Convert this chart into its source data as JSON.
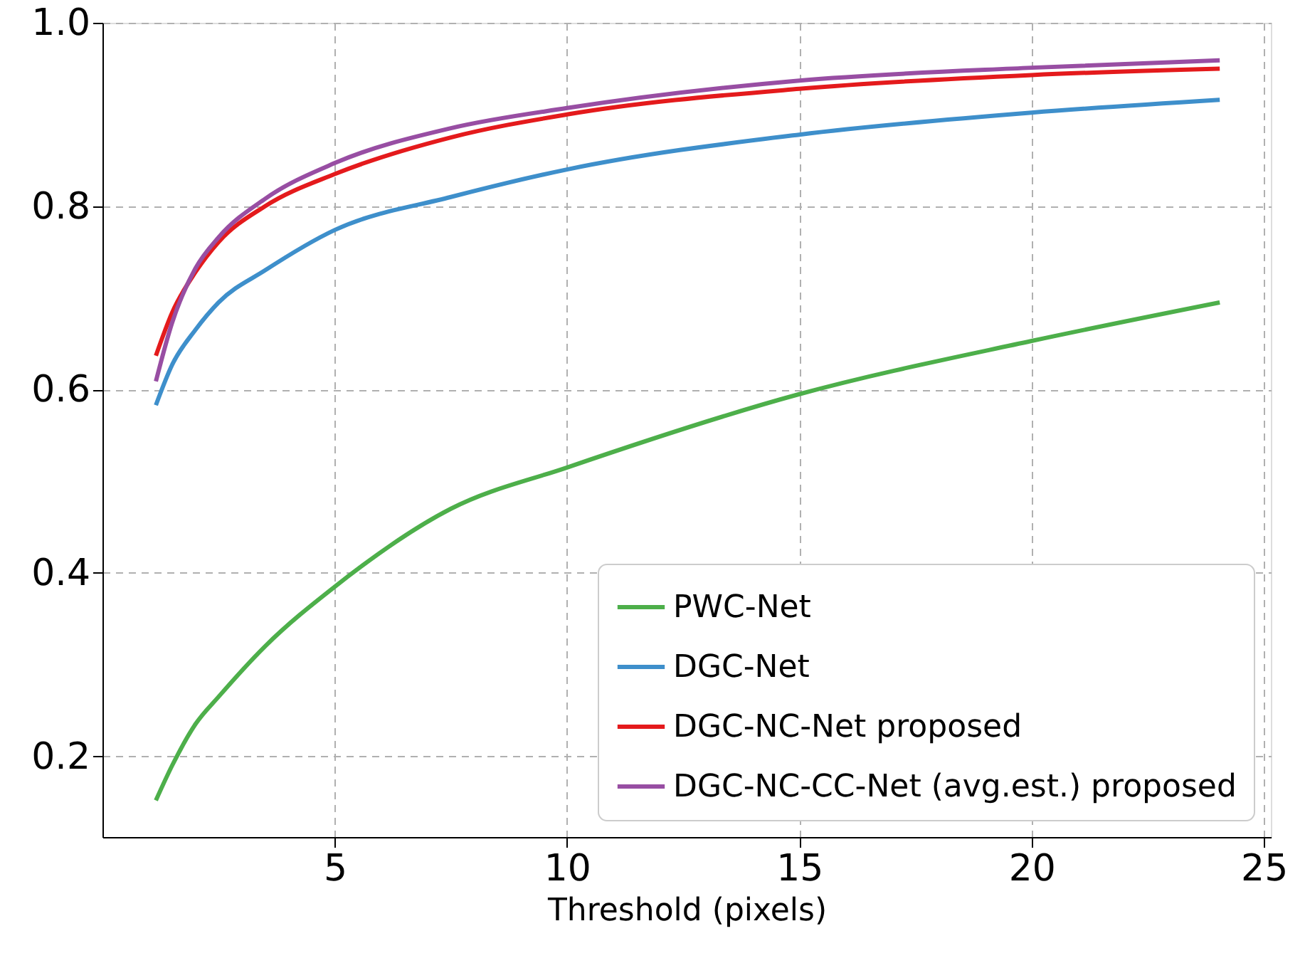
{
  "chart_data": {
    "type": "line",
    "xlabel": "Threshold (pixels)",
    "x": [
      1.15,
      1.5,
      2,
      2.5,
      3.5,
      5,
      7.5,
      10,
      15,
      20,
      24.05
    ],
    "series": [
      {
        "name": "PWC-Net",
        "color": "#4daf4a",
        "values": [
          0.152,
          0.19,
          0.235,
          0.265,
          0.32,
          0.385,
          0.47,
          0.515,
          0.595,
          0.653,
          0.695
        ]
      },
      {
        "name": "DGC-Net",
        "color": "#3e8fcb",
        "values": [
          0.583,
          0.627,
          0.665,
          0.695,
          0.73,
          0.774,
          0.81,
          0.84,
          0.878,
          0.902,
          0.916
        ]
      },
      {
        "name": "DGC-NC-Net proposed",
        "color": "#e41a1c",
        "values": [
          0.637,
          0.684,
          0.728,
          0.761,
          0.8,
          0.835,
          0.875,
          0.9,
          0.928,
          0.943,
          0.95
        ]
      },
      {
        "name": "DGC-NC-CC-Net (avg.est.) proposed",
        "color": "#984ea3",
        "values": [
          0.609,
          0.673,
          0.732,
          0.766,
          0.808,
          0.847,
          0.885,
          0.907,
          0.937,
          0.951,
          0.959
        ]
      }
    ],
    "xlim": [
      0,
      25.15
    ],
    "xticks": [
      5,
      10,
      15,
      20,
      25
    ],
    "ylim": [
      0.112,
      1.0
    ],
    "yticks": [
      {
        "value": 0.2,
        "label": "0.2"
      },
      {
        "value": 0.4,
        "label": "0.4"
      },
      {
        "value": 0.6,
        "label": "0.6"
      },
      {
        "value": 0.8,
        "label": "0.8"
      },
      {
        "value": 1.0,
        "label": "1.0"
      }
    ],
    "grid": true,
    "legend": "bottom right",
    "line_style": "solid",
    "marker": "none"
  }
}
